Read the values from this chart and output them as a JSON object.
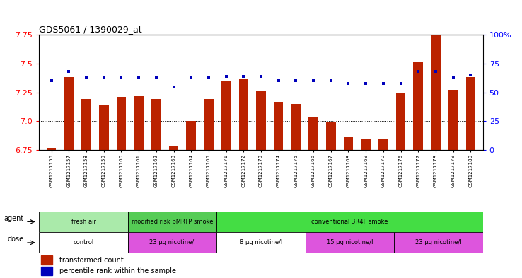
{
  "title": "GDS5061 / 1390029_at",
  "samples": [
    "GSM1217156",
    "GSM1217157",
    "GSM1217158",
    "GSM1217159",
    "GSM1217160",
    "GSM1217161",
    "GSM1217162",
    "GSM1217163",
    "GSM1217164",
    "GSM1217165",
    "GSM1217171",
    "GSM1217172",
    "GSM1217173",
    "GSM1217174",
    "GSM1217175",
    "GSM1217166",
    "GSM1217167",
    "GSM1217168",
    "GSM1217169",
    "GSM1217170",
    "GSM1217176",
    "GSM1217177",
    "GSM1217178",
    "GSM1217179",
    "GSM1217180"
  ],
  "transformed_count": [
    6.77,
    7.38,
    7.19,
    7.14,
    7.21,
    7.22,
    7.19,
    6.79,
    7.0,
    7.19,
    7.35,
    7.37,
    7.26,
    7.17,
    7.15,
    7.04,
    6.99,
    6.87,
    6.85,
    6.85,
    7.25,
    7.52,
    7.75,
    7.27,
    7.38
  ],
  "percentile_rank": [
    60,
    68,
    63,
    63,
    63,
    63,
    63,
    55,
    63,
    63,
    64,
    64,
    64,
    60,
    60,
    60,
    60,
    58,
    58,
    58,
    58,
    68,
    68,
    63,
    65
  ],
  "ylim_left": [
    6.75,
    7.75
  ],
  "ylim_right": [
    0,
    100
  ],
  "yticks_left": [
    6.75,
    7.0,
    7.25,
    7.5,
    7.75
  ],
  "yticks_right": [
    0,
    25,
    50,
    75,
    100
  ],
  "agent_groups": [
    {
      "label": "fresh air",
      "start": 0,
      "end": 5,
      "color": "#AAEAAA"
    },
    {
      "label": "modified risk pMRTP smoke",
      "start": 5,
      "end": 10,
      "color": "#55CC55"
    },
    {
      "label": "conventional 3R4F smoke",
      "start": 10,
      "end": 25,
      "color": "#44DD44"
    }
  ],
  "dose_groups": [
    {
      "label": "control",
      "start": 0,
      "end": 5,
      "color": "#FFFFFF"
    },
    {
      "label": "23 μg nicotine/l",
      "start": 5,
      "end": 10,
      "color": "#DD55DD"
    },
    {
      "label": "8 μg nicotine/l",
      "start": 10,
      "end": 15,
      "color": "#FFFFFF"
    },
    {
      "label": "15 μg nicotine/l",
      "start": 15,
      "end": 20,
      "color": "#DD55DD"
    },
    {
      "label": "23 μg nicotine/l",
      "start": 20,
      "end": 25,
      "color": "#DD55DD"
    }
  ],
  "bar_color": "#BB2200",
  "dot_color": "#0000BB",
  "bar_width": 0.55,
  "title_fontsize": 9,
  "tick_fontsize": 7,
  "xtick_fontsize": 5,
  "annotation_fontsize": 7,
  "legend_fontsize": 7
}
